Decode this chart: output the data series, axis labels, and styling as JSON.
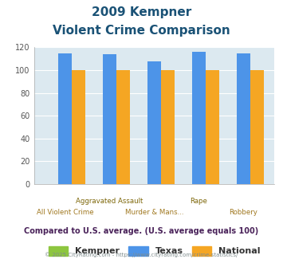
{
  "title_line1": "2009 Kempner",
  "title_line2": "Violent Crime Comparison",
  "categories": [
    "All Violent Crime",
    "Aggravated Assault",
    "Murder & Mans...",
    "Rape",
    "Robbery"
  ],
  "kempner": [
    0,
    0,
    0,
    0,
    0
  ],
  "texas": [
    115,
    114,
    108,
    116,
    115
  ],
  "national": [
    100,
    100,
    100,
    100,
    100
  ],
  "colors": {
    "kempner": "#8dc63f",
    "texas": "#4d94e8",
    "national": "#f5a623"
  },
  "ylim": [
    0,
    120
  ],
  "yticks": [
    0,
    20,
    40,
    60,
    80,
    100,
    120
  ],
  "background_color": "#dce9f0",
  "title_color": "#1a5276",
  "xlabel_top_color": "#7d6608",
  "xlabel_bot_color": "#a07820",
  "footer_text": "Compared to U.S. average. (U.S. average equals 100)",
  "footer_color": "#4a235a",
  "copyright_text": "© 2025 CityRating.com - https://www.cityrating.com/crime-statistics/",
  "copyright_color": "#7f8c8d",
  "legend_labels": [
    "Kempner",
    "Texas",
    "National"
  ],
  "bar_width": 0.3,
  "top_labels": [
    "",
    "Aggravated Assault",
    "",
    "Rape",
    ""
  ],
  "bot_labels": [
    "All Violent Crime",
    "",
    "Murder & Mans...",
    "",
    "Robbery"
  ]
}
